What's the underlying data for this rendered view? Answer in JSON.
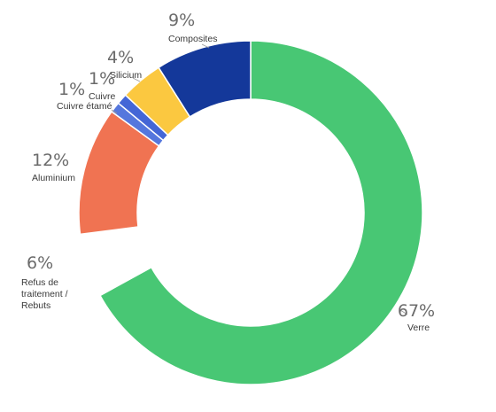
{
  "chart_data": {
    "type": "pie",
    "donut": true,
    "title": "",
    "legend": "none",
    "slices": [
      {
        "label": "Verre",
        "pct_label": "67%",
        "value": 67,
        "color": "#48c774"
      },
      {
        "label": "Refus de traitement / Rebuts",
        "pct_label": "6%",
        "value": 6,
        "color": "#ffffff"
      },
      {
        "label": "Aluminium",
        "pct_label": "12%",
        "value": 12,
        "color": "#f07352"
      },
      {
        "label": "Cuivre étamé",
        "pct_label": "1%",
        "value": 1,
        "color": "#5577dd"
      },
      {
        "label": "Cuivre",
        "pct_label": "1%",
        "value": 1,
        "color": "#4466d6"
      },
      {
        "label": "Silicium",
        "pct_label": "4%",
        "value": 4,
        "color": "#fbc840"
      },
      {
        "label": "Composites",
        "pct_label": "9%",
        "value": 9,
        "color": "#14389a"
      }
    ]
  }
}
